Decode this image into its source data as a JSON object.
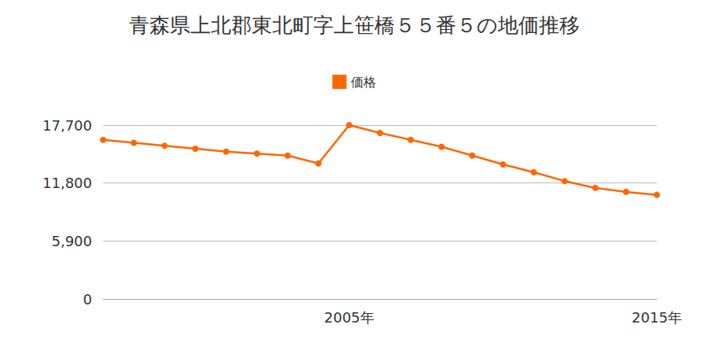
{
  "chart_data": {
    "type": "line",
    "title": "青森県上北郡東北町字上笹橋５５番５の地価推移",
    "categories": [
      null,
      null,
      null,
      null,
      null,
      null,
      null,
      null,
      "2005年",
      null,
      null,
      null,
      null,
      null,
      null,
      null,
      null,
      null,
      "2015年"
    ],
    "series": [
      {
        "name": "価格",
        "color": "#ff6600",
        "marker": "circle",
        "values": [
          16200,
          15900,
          15600,
          15300,
          15000,
          14800,
          14600,
          13800,
          17700,
          16900,
          16200,
          15500,
          14600,
          13700,
          12900,
          12000,
          11300,
          10900,
          10600
        ]
      }
    ],
    "ylim": [
      0,
      17700
    ],
    "yticks": [
      0,
      {
        "value": 5900,
        "label": "5,900"
      },
      {
        "value": 11800,
        "label": "11,800"
      },
      {
        "value": 17700,
        "label": "17,700"
      }
    ],
    "grid": true,
    "legend": "top"
  }
}
